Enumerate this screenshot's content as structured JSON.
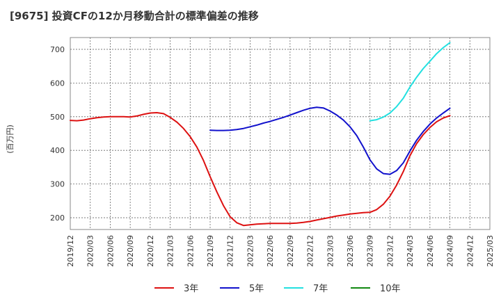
{
  "chart_data": {
    "type": "line",
    "title": "[9675]  投資CFの12か月移動合計の標準偏差の推移",
    "ylabel": "(百万円)",
    "xlabel": "",
    "ylim": [
      165,
      735
    ],
    "yticks": [
      200,
      300,
      400,
      500,
      600,
      700
    ],
    "x_tick_labels": [
      "2019/12",
      "2020/03",
      "2020/06",
      "2020/09",
      "2020/12",
      "2021/03",
      "2021/06",
      "2021/09",
      "2021/12",
      "2022/03",
      "2022/06",
      "2022/09",
      "2022/12",
      "2023/03",
      "2023/06",
      "2023/09",
      "2023/12",
      "2024/03",
      "2024/06",
      "2024/09",
      "2024/12",
      "2025/03"
    ],
    "grid": true,
    "legend_position": "bottom",
    "series": [
      {
        "name": "3年",
        "color": "#dd1111",
        "x": [
          "2019/12",
          "2020/01",
          "2020/02",
          "2020/03",
          "2020/04",
          "2020/05",
          "2020/06",
          "2020/07",
          "2020/08",
          "2020/09",
          "2020/10",
          "2020/11",
          "2020/12",
          "2021/01",
          "2021/02",
          "2021/03",
          "2021/04",
          "2021/05",
          "2021/06",
          "2021/07",
          "2021/08",
          "2021/09",
          "2021/10",
          "2021/11",
          "2021/12",
          "2022/01",
          "2022/02",
          "2022/03",
          "2022/04",
          "2022/05",
          "2022/06",
          "2022/07",
          "2022/08",
          "2022/09",
          "2022/10",
          "2022/11",
          "2022/12",
          "2023/01",
          "2023/02",
          "2023/03",
          "2023/04",
          "2023/05",
          "2023/06",
          "2023/07",
          "2023/08",
          "2023/09",
          "2023/10",
          "2023/11",
          "2023/12",
          "2024/01",
          "2024/02",
          "2024/03",
          "2024/04",
          "2024/05",
          "2024/06",
          "2024/07",
          "2024/08",
          "2024/09"
        ],
        "values": [
          489,
          488,
          490,
          494,
          497,
          499,
          500,
          500,
          500,
          499,
          502,
          507,
          511,
          512,
          509,
          498,
          484,
          465,
          441,
          410,
          370,
          322,
          277,
          236,
          203,
          185,
          177,
          179,
          181,
          182,
          183,
          183,
          183,
          183,
          184,
          186,
          189,
          193,
          197,
          201,
          205,
          208,
          211,
          213,
          215,
          216,
          224,
          240,
          264,
          297,
          337,
          384,
          420,
          447,
          468,
          485,
          496,
          503
        ]
      },
      {
        "name": "5年",
        "color": "#1111cc",
        "x": [
          "2021/09",
          "2021/10",
          "2021/11",
          "2021/12",
          "2022/01",
          "2022/02",
          "2022/03",
          "2022/04",
          "2022/05",
          "2022/06",
          "2022/07",
          "2022/08",
          "2022/09",
          "2022/10",
          "2022/11",
          "2022/12",
          "2023/01",
          "2023/02",
          "2023/03",
          "2023/04",
          "2023/05",
          "2023/06",
          "2023/07",
          "2023/08",
          "2023/09",
          "2023/10",
          "2023/11",
          "2023/12",
          "2024/01",
          "2024/02",
          "2024/03",
          "2024/04",
          "2024/05",
          "2024/06",
          "2024/07",
          "2024/08",
          "2024/09"
        ],
        "values": [
          460,
          459,
          459,
          460,
          462,
          465,
          470,
          475,
          481,
          486,
          492,
          498,
          505,
          512,
          519,
          525,
          528,
          526,
          517,
          505,
          490,
          470,
          444,
          410,
          372,
          345,
          331,
          329,
          340,
          363,
          398,
          430,
          456,
          478,
          496,
          511,
          525
        ]
      },
      {
        "name": "7年",
        "color": "#22e0e0",
        "x": [
          "2023/09",
          "2023/10",
          "2023/11",
          "2023/12",
          "2024/01",
          "2024/02",
          "2024/03",
          "2024/04",
          "2024/05",
          "2024/06",
          "2024/07",
          "2024/08",
          "2024/09"
        ],
        "values": [
          488,
          491,
          499,
          511,
          530,
          555,
          588,
          617,
          643,
          665,
          687,
          705,
          720
        ]
      },
      {
        "name": "10年",
        "color": "#118811",
        "x": [],
        "values": []
      }
    ]
  }
}
